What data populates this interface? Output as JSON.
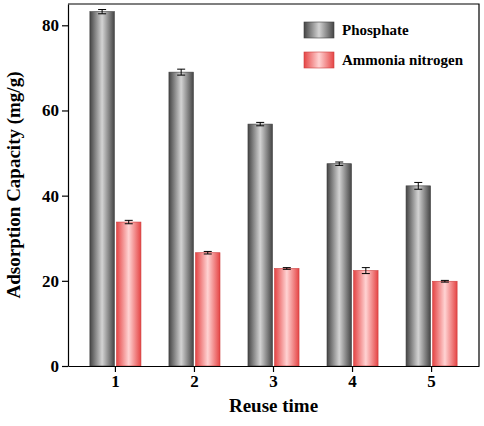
{
  "chart_data": {
    "type": "bar",
    "x_label": "Reuse time",
    "y_label": "Adsorption Capacity (mg/g)",
    "categories": [
      "1",
      "2",
      "3",
      "4",
      "5"
    ],
    "series": [
      {
        "name": "Phosphate",
        "color": "#4d4d4d",
        "values": [
          83.2,
          69.0,
          56.8,
          47.5,
          42.3
        ],
        "errors": [
          0.5,
          0.7,
          0.4,
          0.4,
          0.8
        ]
      },
      {
        "name": "Ammonia nitrogen",
        "color": "#ff4d4d",
        "values": [
          33.8,
          26.6,
          22.9,
          22.4,
          19.9
        ],
        "errors": [
          0.4,
          0.3,
          0.2,
          0.7,
          0.2
        ]
      }
    ],
    "ylim": [
      0,
      85
    ],
    "yticks": [
      0,
      20,
      40,
      60,
      80
    ],
    "grid": false,
    "legend": "upper right"
  }
}
